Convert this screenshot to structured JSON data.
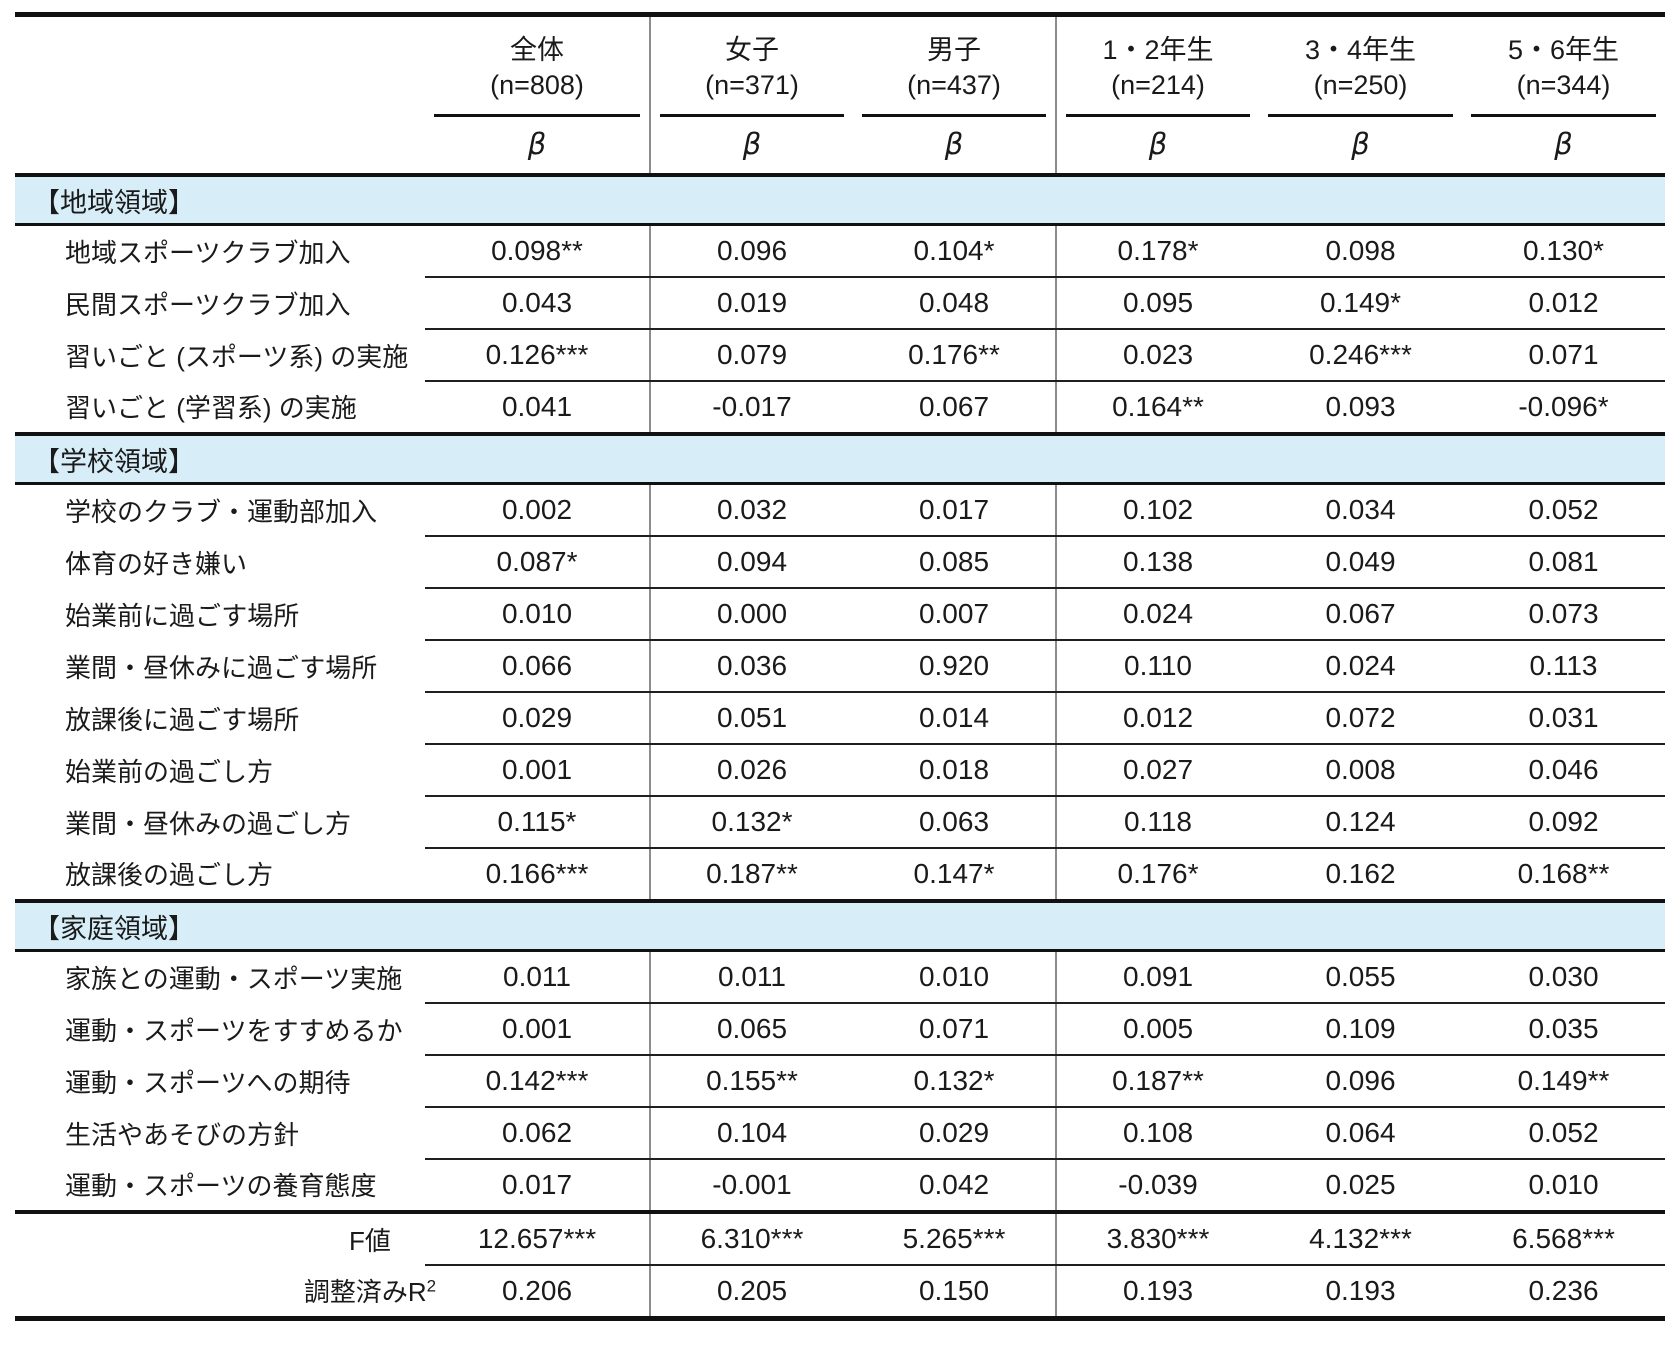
{
  "table": {
    "stat_symbol": "β",
    "section_band_color": "#d7edf8",
    "columns": [
      {
        "label": "全体",
        "n": "(n=808)"
      },
      {
        "label": "女子",
        "n": "(n=371)"
      },
      {
        "label": "男子",
        "n": "(n=437)"
      },
      {
        "label": "1・2年生",
        "n": "(n=214)"
      },
      {
        "label": "3・4年生",
        "n": "(n=250)"
      },
      {
        "label": "5・6年生",
        "n": "(n=344)"
      }
    ],
    "sections": [
      {
        "header": "【地域領域】",
        "rows": [
          {
            "label": "地域スポーツクラブ加入",
            "values": [
              "0.098**",
              "0.096",
              "0.104*",
              "0.178*",
              "0.098",
              "0.130*"
            ]
          },
          {
            "label": "民間スポーツクラブ加入",
            "values": [
              "0.043",
              "0.019",
              "0.048",
              "0.095",
              "0.149*",
              "0.012"
            ]
          },
          {
            "label": "習いごと (スポーツ系) の実施",
            "values": [
              "0.126***",
              "0.079",
              "0.176**",
              "0.023",
              "0.246***",
              "0.071"
            ]
          },
          {
            "label": "習いごと (学習系) の実施",
            "values": [
              "0.041",
              "-0.017",
              "0.067",
              "0.164**",
              "0.093",
              "-0.096*"
            ]
          }
        ]
      },
      {
        "header": "【学校領域】",
        "rows": [
          {
            "label": "学校のクラブ・運動部加入",
            "values": [
              "0.002",
              "0.032",
              "0.017",
              "0.102",
              "0.034",
              "0.052"
            ]
          },
          {
            "label": "体育の好き嫌い",
            "values": [
              "0.087*",
              "0.094",
              "0.085",
              "0.138",
              "0.049",
              "0.081"
            ]
          },
          {
            "label": "始業前に過ごす場所",
            "values": [
              "0.010",
              "0.000",
              "0.007",
              "0.024",
              "0.067",
              "0.073"
            ]
          },
          {
            "label": "業間・昼休みに過ごす場所",
            "values": [
              "0.066",
              "0.036",
              "0.920",
              "0.110",
              "0.024",
              "0.113"
            ]
          },
          {
            "label": "放課後に過ごす場所",
            "values": [
              "0.029",
              "0.051",
              "0.014",
              "0.012",
              "0.072",
              "0.031"
            ]
          },
          {
            "label": "始業前の過ごし方",
            "values": [
              "0.001",
              "0.026",
              "0.018",
              "0.027",
              "0.008",
              "0.046"
            ]
          },
          {
            "label": "業間・昼休みの過ごし方",
            "values": [
              "0.115*",
              "0.132*",
              "0.063",
              "0.118",
              "0.124",
              "0.092"
            ]
          },
          {
            "label": "放課後の過ごし方",
            "values": [
              "0.166***",
              "0.187**",
              "0.147*",
              "0.176*",
              "0.162",
              "0.168**"
            ]
          }
        ]
      },
      {
        "header": "【家庭領域】",
        "rows": [
          {
            "label": "家族との運動・スポーツ実施",
            "values": [
              "0.011",
              "0.011",
              "0.010",
              "0.091",
              "0.055",
              "0.030"
            ]
          },
          {
            "label": "運動・スポーツをすすめるか",
            "values": [
              "0.001",
              "0.065",
              "0.071",
              "0.005",
              "0.109",
              "0.035"
            ]
          },
          {
            "label": "運動・スポーツへの期待",
            "values": [
              "0.142***",
              "0.155**",
              "0.132*",
              "0.187**",
              "0.096",
              "0.149**"
            ]
          },
          {
            "label": "生活やあそびの方針",
            "values": [
              "0.062",
              "0.104",
              "0.029",
              "0.108",
              "0.064",
              "0.052"
            ]
          },
          {
            "label": "運動・スポーツの養育態度",
            "values": [
              "0.017",
              "-0.001",
              "0.042",
              "-0.039",
              "0.025",
              "0.010"
            ]
          }
        ]
      }
    ],
    "footer_rows": [
      {
        "label": "F値",
        "label_sup": "",
        "values": [
          "12.657***",
          "6.310***",
          "5.265***",
          "3.830***",
          "4.132***",
          "6.568***"
        ]
      },
      {
        "label": "調整済みR",
        "label_sup": "2",
        "values": [
          "0.206",
          "0.205",
          "0.150",
          "0.193",
          "0.193",
          "0.236"
        ]
      }
    ]
  }
}
